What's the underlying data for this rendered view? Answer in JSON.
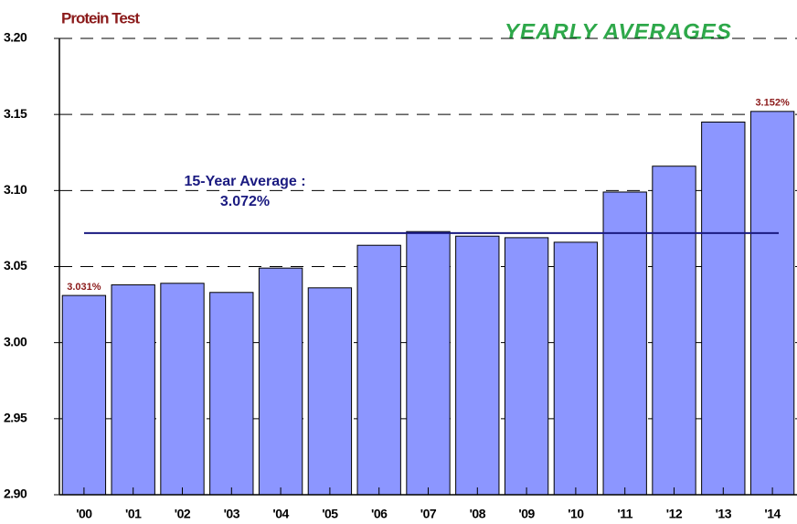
{
  "chart_data": {
    "type": "bar",
    "title": "Protein Test",
    "subtitle": "YEARLY AVERAGES",
    "categories": [
      "'00",
      "'01",
      "'02",
      "'03",
      "'04",
      "'05",
      "'06",
      "'07",
      "'08",
      "'09",
      "'10",
      "'11",
      "'12",
      "'13",
      "'14"
    ],
    "values": [
      3.031,
      3.038,
      3.039,
      3.033,
      3.049,
      3.036,
      3.064,
      3.073,
      3.07,
      3.069,
      3.066,
      3.099,
      3.116,
      3.145,
      3.152
    ],
    "value_labels": [
      "3.031%",
      null,
      null,
      null,
      null,
      null,
      null,
      null,
      null,
      null,
      null,
      null,
      null,
      null,
      "3.152%"
    ],
    "color": "#8c96ff",
    "average": {
      "label": "15-Year Average :",
      "value": 3.072,
      "value_label": "3.072%",
      "color": "#1a1a80"
    },
    "ylim": [
      2.9,
      3.2
    ],
    "yticks": [
      {
        "value": 2.9,
        "label": "2.90"
      },
      2.95,
      {
        "value": 3.0,
        "label": "3.00"
      },
      3.05,
      {
        "value": 3.1,
        "label": "3.10"
      },
      3.15,
      {
        "value": 3.2,
        "label": "3.20"
      }
    ],
    "grid": true
  }
}
